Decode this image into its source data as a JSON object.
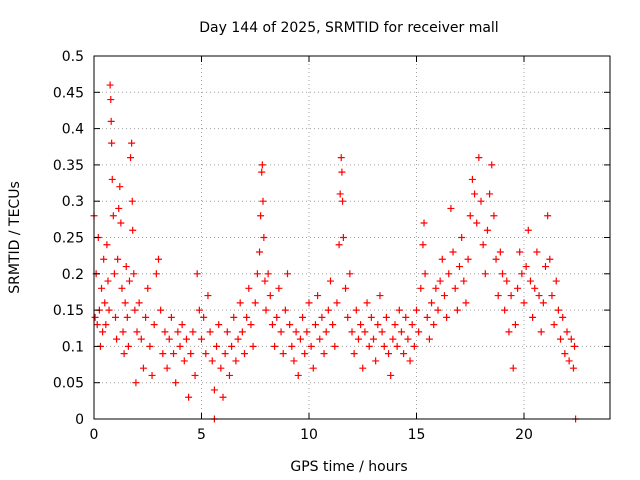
{
  "chart_data": {
    "type": "scatter",
    "title": "Day 144 of 2025, SRMTID for receiver mall",
    "xlabel": "GPS time / hours",
    "ylabel": "SRMTID / TECUs",
    "xlim": [
      0,
      24
    ],
    "ylim": [
      0,
      0.5
    ],
    "xticks": [
      0,
      5,
      10,
      15,
      20
    ],
    "yticks": [
      0,
      0.05,
      0.1,
      0.15,
      0.2,
      0.25,
      0.3,
      0.35,
      0.4,
      0.45,
      0.5
    ],
    "grid": true,
    "legend": "none",
    "marker": "+",
    "color": "#ff0000",
    "series": [
      {
        "points": [
          [
            0.0,
            0.28
          ],
          [
            0.05,
            0.14
          ],
          [
            0.1,
            0.2
          ],
          [
            0.15,
            0.13
          ],
          [
            0.2,
            0.25
          ],
          [
            0.25,
            0.15
          ],
          [
            0.3,
            0.1
          ],
          [
            0.35,
            0.18
          ],
          [
            0.4,
            0.12
          ],
          [
            0.45,
            0.22
          ],
          [
            0.5,
            0.16
          ],
          [
            0.55,
            0.13
          ],
          [
            0.6,
            0.24
          ],
          [
            0.65,
            0.19
          ],
          [
            0.7,
            0.15
          ],
          [
            0.75,
            0.46
          ],
          [
            0.78,
            0.44
          ],
          [
            0.8,
            0.41
          ],
          [
            0.82,
            0.38
          ],
          [
            0.85,
            0.33
          ],
          [
            0.9,
            0.28
          ],
          [
            0.95,
            0.2
          ],
          [
            1.0,
            0.14
          ],
          [
            1.05,
            0.11
          ],
          [
            1.1,
            0.22
          ],
          [
            1.15,
            0.29
          ],
          [
            1.2,
            0.32
          ],
          [
            1.25,
            0.27
          ],
          [
            1.3,
            0.18
          ],
          [
            1.35,
            0.12
          ],
          [
            1.4,
            0.09
          ],
          [
            1.45,
            0.16
          ],
          [
            1.5,
            0.21
          ],
          [
            1.55,
            0.14
          ],
          [
            1.6,
            0.1
          ],
          [
            1.65,
            0.19
          ],
          [
            1.7,
            0.36
          ],
          [
            1.75,
            0.38
          ],
          [
            1.78,
            0.3
          ],
          [
            1.8,
            0.26
          ],
          [
            1.85,
            0.2
          ],
          [
            1.9,
            0.15
          ],
          [
            1.95,
            0.05
          ],
          [
            2.0,
            0.12
          ],
          [
            2.1,
            0.16
          ],
          [
            2.2,
            0.11
          ],
          [
            2.3,
            0.07
          ],
          [
            2.4,
            0.14
          ],
          [
            2.5,
            0.18
          ],
          [
            2.6,
            0.1
          ],
          [
            2.7,
            0.06
          ],
          [
            2.8,
            0.13
          ],
          [
            2.9,
            0.2
          ],
          [
            3.0,
            0.22
          ],
          [
            3.1,
            0.15
          ],
          [
            3.2,
            0.09
          ],
          [
            3.3,
            0.12
          ],
          [
            3.4,
            0.07
          ],
          [
            3.5,
            0.11
          ],
          [
            3.6,
            0.14
          ],
          [
            3.7,
            0.09
          ],
          [
            3.8,
            0.05
          ],
          [
            3.9,
            0.12
          ],
          [
            4.0,
            0.1
          ],
          [
            4.1,
            0.13
          ],
          [
            4.2,
            0.08
          ],
          [
            4.3,
            0.11
          ],
          [
            4.4,
            0.03
          ],
          [
            4.5,
            0.09
          ],
          [
            4.6,
            0.12
          ],
          [
            4.7,
            0.06
          ],
          [
            4.8,
            0.2
          ],
          [
            4.9,
            0.15
          ],
          [
            5.0,
            0.11
          ],
          [
            5.1,
            0.14
          ],
          [
            5.2,
            0.09
          ],
          [
            5.3,
            0.17
          ],
          [
            5.4,
            0.12
          ],
          [
            5.5,
            0.08
          ],
          [
            5.6,
            0.04
          ],
          [
            5.7,
            0.1
          ],
          [
            5.8,
            0.13
          ],
          [
            5.9,
            0.07
          ],
          [
            6.0,
            0.03
          ],
          [
            6.1,
            0.09
          ],
          [
            6.2,
            0.12
          ],
          [
            6.3,
            0.06
          ],
          [
            6.4,
            0.1
          ],
          [
            6.5,
            0.14
          ],
          [
            6.6,
            0.08
          ],
          [
            6.7,
            0.11
          ],
          [
            6.8,
            0.16
          ],
          [
            6.9,
            0.12
          ],
          [
            7.0,
            0.09
          ],
          [
            7.1,
            0.14
          ],
          [
            7.2,
            0.18
          ],
          [
            7.3,
            0.13
          ],
          [
            7.4,
            0.1
          ],
          [
            7.5,
            0.16
          ],
          [
            7.6,
            0.2
          ],
          [
            7.7,
            0.23
          ],
          [
            7.75,
            0.28
          ],
          [
            7.8,
            0.34
          ],
          [
            7.83,
            0.35
          ],
          [
            7.86,
            0.3
          ],
          [
            7.9,
            0.25
          ],
          [
            7.95,
            0.19
          ],
          [
            8.0,
            0.15
          ],
          [
            8.1,
            0.2
          ],
          [
            8.2,
            0.17
          ],
          [
            8.3,
            0.13
          ],
          [
            8.4,
            0.1
          ],
          [
            8.5,
            0.14
          ],
          [
            8.6,
            0.18
          ],
          [
            8.7,
            0.12
          ],
          [
            8.8,
            0.09
          ],
          [
            8.9,
            0.15
          ],
          [
            9.0,
            0.2
          ],
          [
            9.1,
            0.13
          ],
          [
            9.2,
            0.1
          ],
          [
            9.3,
            0.08
          ],
          [
            9.4,
            0.12
          ],
          [
            9.5,
            0.06
          ],
          [
            9.6,
            0.11
          ],
          [
            9.7,
            0.14
          ],
          [
            9.8,
            0.09
          ],
          [
            9.9,
            0.12
          ],
          [
            10.0,
            0.16
          ],
          [
            10.1,
            0.1
          ],
          [
            10.2,
            0.07
          ],
          [
            10.3,
            0.13
          ],
          [
            10.4,
            0.17
          ],
          [
            10.5,
            0.11
          ],
          [
            10.6,
            0.14
          ],
          [
            10.7,
            0.09
          ],
          [
            10.8,
            0.12
          ],
          [
            10.9,
            0.15
          ],
          [
            11.0,
            0.19
          ],
          [
            11.1,
            0.13
          ],
          [
            11.2,
            0.1
          ],
          [
            11.3,
            0.16
          ],
          [
            11.4,
            0.24
          ],
          [
            11.45,
            0.31
          ],
          [
            11.5,
            0.36
          ],
          [
            11.53,
            0.34
          ],
          [
            11.56,
            0.3
          ],
          [
            11.6,
            0.25
          ],
          [
            11.7,
            0.18
          ],
          [
            11.8,
            0.14
          ],
          [
            11.9,
            0.2
          ],
          [
            12.0,
            0.12
          ],
          [
            12.1,
            0.09
          ],
          [
            12.2,
            0.15
          ],
          [
            12.3,
            0.11
          ],
          [
            12.4,
            0.13
          ],
          [
            12.5,
            0.07
          ],
          [
            12.6,
            0.12
          ],
          [
            12.7,
            0.16
          ],
          [
            12.8,
            0.1
          ],
          [
            12.9,
            0.14
          ],
          [
            13.0,
            0.11
          ],
          [
            13.1,
            0.08
          ],
          [
            13.2,
            0.13
          ],
          [
            13.3,
            0.17
          ],
          [
            13.4,
            0.12
          ],
          [
            13.5,
            0.1
          ],
          [
            13.6,
            0.14
          ],
          [
            13.7,
            0.09
          ],
          [
            13.8,
            0.06
          ],
          [
            13.9,
            0.11
          ],
          [
            14.0,
            0.13
          ],
          [
            14.1,
            0.1
          ],
          [
            14.2,
            0.15
          ],
          [
            14.3,
            0.12
          ],
          [
            14.4,
            0.09
          ],
          [
            14.5,
            0.14
          ],
          [
            14.6,
            0.11
          ],
          [
            14.7,
            0.08
          ],
          [
            14.8,
            0.13
          ],
          [
            14.9,
            0.1
          ],
          [
            15.0,
            0.15
          ],
          [
            15.1,
            0.12
          ],
          [
            15.2,
            0.18
          ],
          [
            15.3,
            0.24
          ],
          [
            15.35,
            0.27
          ],
          [
            15.4,
            0.2
          ],
          [
            15.5,
            0.14
          ],
          [
            15.6,
            0.11
          ],
          [
            15.7,
            0.16
          ],
          [
            15.8,
            0.13
          ],
          [
            15.9,
            0.18
          ],
          [
            16.0,
            0.15
          ],
          [
            16.1,
            0.19
          ],
          [
            16.2,
            0.22
          ],
          [
            16.3,
            0.17
          ],
          [
            16.4,
            0.14
          ],
          [
            16.5,
            0.2
          ],
          [
            16.6,
            0.29
          ],
          [
            16.7,
            0.23
          ],
          [
            16.8,
            0.18
          ],
          [
            16.9,
            0.15
          ],
          [
            17.0,
            0.21
          ],
          [
            17.1,
            0.25
          ],
          [
            17.2,
            0.19
          ],
          [
            17.3,
            0.16
          ],
          [
            17.4,
            0.22
          ],
          [
            17.5,
            0.28
          ],
          [
            17.6,
            0.33
          ],
          [
            17.7,
            0.31
          ],
          [
            17.8,
            0.27
          ],
          [
            17.9,
            0.36
          ],
          [
            18.0,
            0.3
          ],
          [
            18.1,
            0.24
          ],
          [
            18.2,
            0.2
          ],
          [
            18.3,
            0.26
          ],
          [
            18.4,
            0.31
          ],
          [
            18.5,
            0.35
          ],
          [
            18.6,
            0.28
          ],
          [
            18.7,
            0.22
          ],
          [
            18.8,
            0.17
          ],
          [
            18.9,
            0.23
          ],
          [
            19.0,
            0.2
          ],
          [
            19.1,
            0.15
          ],
          [
            19.2,
            0.19
          ],
          [
            19.3,
            0.12
          ],
          [
            19.4,
            0.17
          ],
          [
            19.5,
            0.07
          ],
          [
            19.6,
            0.13
          ],
          [
            19.7,
            0.18
          ],
          [
            19.8,
            0.23
          ],
          [
            19.9,
            0.2
          ],
          [
            20.0,
            0.16
          ],
          [
            20.1,
            0.21
          ],
          [
            20.2,
            0.26
          ],
          [
            20.3,
            0.19
          ],
          [
            20.4,
            0.14
          ],
          [
            20.5,
            0.18
          ],
          [
            20.6,
            0.23
          ],
          [
            20.7,
            0.17
          ],
          [
            20.8,
            0.12
          ],
          [
            20.9,
            0.16
          ],
          [
            21.0,
            0.21
          ],
          [
            21.1,
            0.28
          ],
          [
            21.2,
            0.22
          ],
          [
            21.3,
            0.17
          ],
          [
            21.4,
            0.13
          ],
          [
            21.5,
            0.19
          ],
          [
            21.6,
            0.15
          ],
          [
            21.7,
            0.11
          ],
          [
            21.8,
            0.14
          ],
          [
            21.9,
            0.09
          ],
          [
            22.0,
            0.12
          ],
          [
            22.1,
            0.08
          ],
          [
            22.2,
            0.11
          ],
          [
            22.3,
            0.07
          ],
          [
            22.35,
            0.1
          ]
        ]
      },
      {
        "points": [
          [
            5.6,
            0.0
          ],
          [
            22.4,
            0.0
          ]
        ]
      }
    ]
  }
}
